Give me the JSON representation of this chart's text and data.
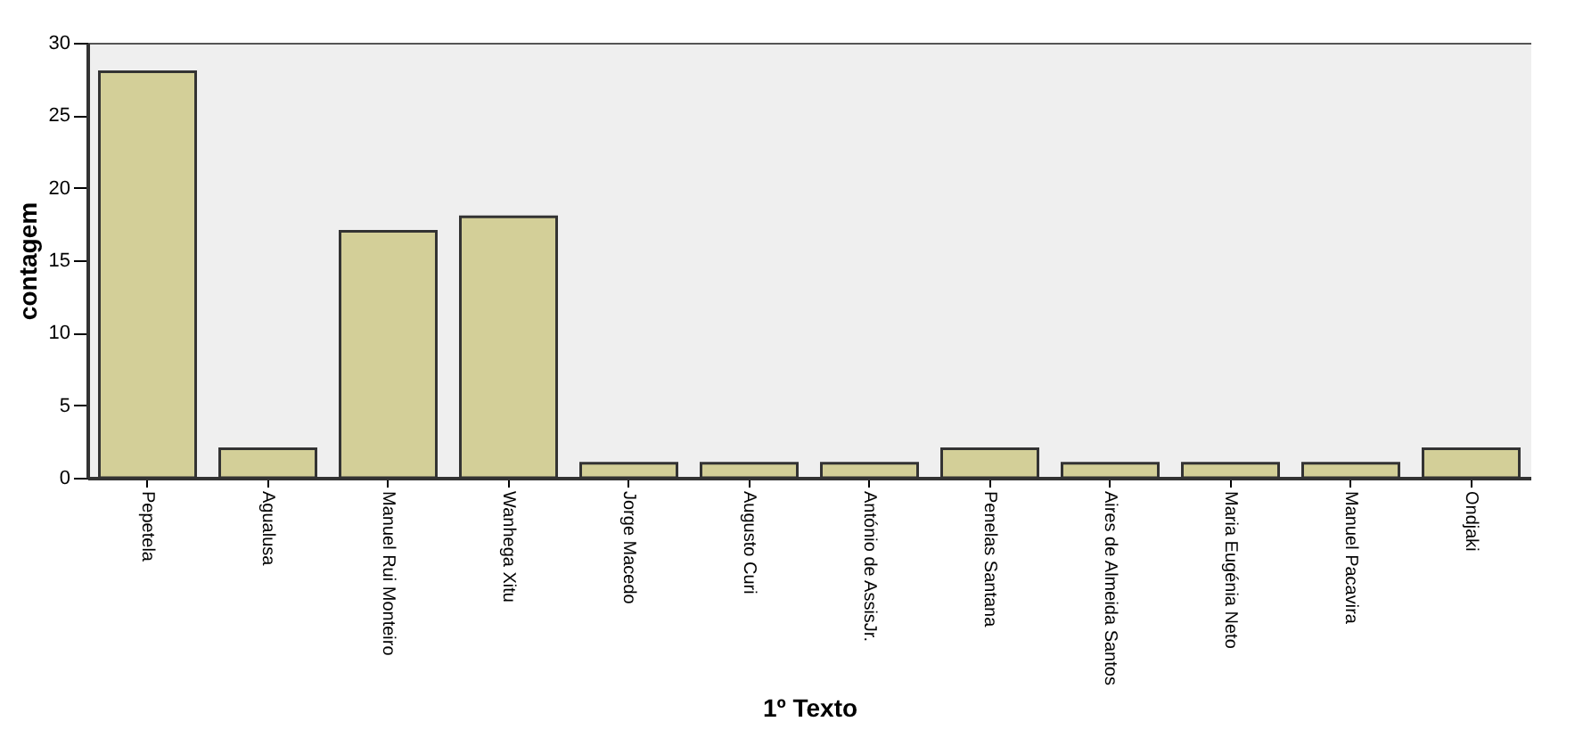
{
  "chart_data": {
    "type": "bar",
    "xlabel": "1º Texto",
    "ylabel": "contagem",
    "categories": [
      "Pepetela",
      "Agualusa",
      "Manuel Rui Monteiro",
      "Wanhega Xitu",
      "Jorge Macedo",
      "Augusto Curi",
      "António de AssisJr.",
      "Penelas Santana",
      "Aires de Almeida Santos",
      "Maria Eugénia Neto",
      "Manuel Pacavira",
      "Ondjaki"
    ],
    "values": [
      28,
      2,
      17,
      18,
      1,
      1,
      1,
      2,
      1,
      1,
      1,
      2
    ],
    "color": "#d3cf98",
    "ylim": [
      0,
      30
    ],
    "yticks": [
      0,
      5,
      10,
      15,
      20,
      25,
      30
    ],
    "grid": false
  }
}
